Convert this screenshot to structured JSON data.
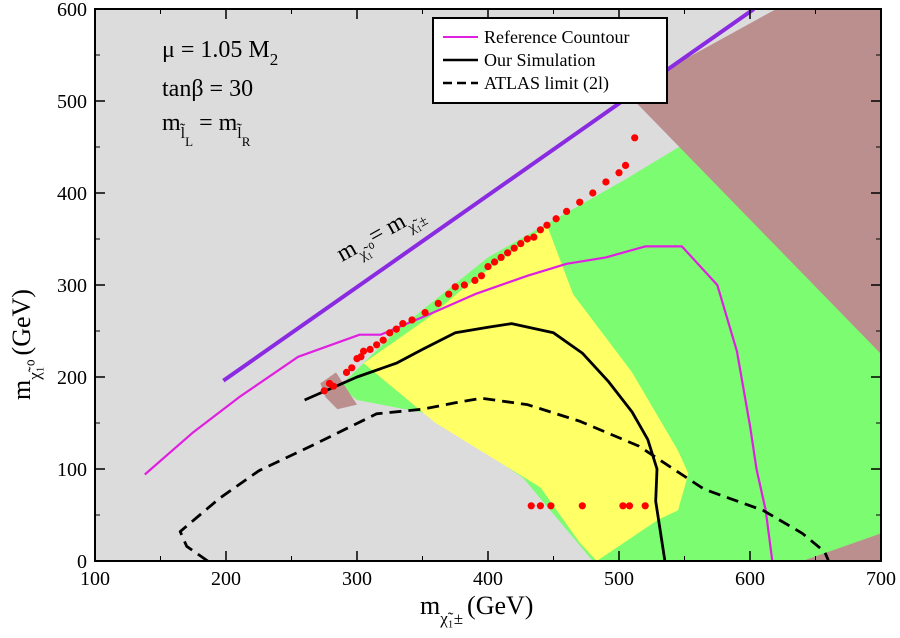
{
  "chart_data": {
    "type": "line",
    "xlabel": {
      "main": "m",
      "sub": "χ̃₁±",
      "unit": "(GeV)"
    },
    "ylabel": {
      "main": "m",
      "sub": "χ̃₁⁰",
      "unit": "(GeV)"
    },
    "xlim": [
      100,
      700
    ],
    "ylim": [
      0,
      600
    ],
    "xticks": [
      100,
      200,
      300,
      400,
      500,
      600,
      700
    ],
    "yticks": [
      0,
      100,
      200,
      300,
      400,
      500,
      600
    ],
    "annotations": {
      "mu": "μ = 1.05 M",
      "mu_sub": "2",
      "tanb": "tanβ = 30",
      "mass_rel": {
        "m": "m",
        "subL": "l̃",
        "subL2": "L",
        "eq": " = m",
        "subR": "l̃",
        "subR2": "R"
      },
      "diag_label": {
        "a": "m",
        "sub_a": "χ̃₁⁰",
        "eq": "= m",
        "sub_b": "χ̃₁±"
      }
    },
    "colors": {
      "background": "#dcdcdc",
      "excluded_brown": "#bc8f8f",
      "green_region": "#7cfc70",
      "yellow_region": "#ffff66",
      "purple_line": "#8a2be2",
      "reference": "#e020e0",
      "points": "#ff0000"
    },
    "regions": {
      "brown_top": [
        [
          505,
          510
        ],
        [
          620,
          600
        ],
        [
          700,
          600
        ],
        [
          700,
          225
        ]
      ],
      "brown_bottom": [
        [
          640,
          0
        ],
        [
          700,
          0
        ],
        [
          700,
          30
        ]
      ],
      "brown_small": [
        [
          272,
          193
        ],
        [
          284,
          205
        ],
        [
          300,
          170
        ],
        [
          285,
          165
        ],
        [
          276,
          178
        ]
      ],
      "green": [
        [
          287,
          190
        ],
        [
          330,
          250
        ],
        [
          400,
          330
        ],
        [
          505,
          415
        ],
        [
          610,
          505
        ],
        [
          700,
          593
        ],
        [
          700,
          0
        ],
        [
          598,
          0
        ],
        [
          530,
          0
        ],
        [
          480,
          0
        ],
        [
          427,
          90
        ],
        [
          355,
          160
        ],
        [
          300,
          175
        ]
      ],
      "yellow": [
        [
          305,
          215
        ],
        [
          355,
          265
        ],
        [
          380,
          295
        ],
        [
          445,
          365
        ],
        [
          465,
          290
        ],
        [
          510,
          205
        ],
        [
          545,
          120
        ],
        [
          553,
          95
        ],
        [
          545,
          55
        ],
        [
          530,
          45
        ],
        [
          483,
          0
        ],
        [
          470,
          20
        ],
        [
          440,
          80
        ],
        [
          360,
          150
        ]
      ]
    },
    "series": [
      {
        "name": "Reference Countour",
        "style": "magenta-solid",
        "points": [
          [
            138,
            94
          ],
          [
            175,
            140
          ],
          [
            210,
            178
          ],
          [
            255,
            222
          ],
          [
            302,
            246
          ],
          [
            318,
            246
          ],
          [
            355,
            268
          ],
          [
            390,
            290
          ],
          [
            430,
            310
          ],
          [
            460,
            323
          ],
          [
            490,
            330
          ],
          [
            520,
            342
          ],
          [
            548,
            342
          ],
          [
            575,
            300
          ],
          [
            590,
            228
          ],
          [
            600,
            147
          ],
          [
            605,
            100
          ],
          [
            612,
            55
          ],
          [
            617,
            0
          ]
        ]
      },
      {
        "name": "Our Simulation",
        "style": "black-solid",
        "points": [
          [
            260,
            175
          ],
          [
            300,
            200
          ],
          [
            330,
            215
          ],
          [
            350,
            230
          ],
          [
            375,
            248
          ],
          [
            400,
            254
          ],
          [
            418,
            258
          ],
          [
            450,
            248
          ],
          [
            472,
            226
          ],
          [
            492,
            195
          ],
          [
            510,
            162
          ],
          [
            522,
            132
          ],
          [
            529,
            100
          ],
          [
            528,
            65
          ],
          [
            535,
            0
          ]
        ]
      },
      {
        "name": "ATLAS limit (2l)",
        "style": "black-dashed",
        "points": [
          [
            186,
            0
          ],
          [
            170,
            16
          ],
          [
            165,
            32
          ],
          [
            180,
            50
          ],
          [
            195,
            68
          ],
          [
            225,
            98
          ],
          [
            265,
            125
          ],
          [
            315,
            160
          ],
          [
            350,
            165
          ],
          [
            375,
            172
          ],
          [
            395,
            177
          ],
          [
            430,
            170
          ],
          [
            470,
            152
          ],
          [
            515,
            125
          ],
          [
            565,
            78
          ],
          [
            610,
            55
          ],
          [
            640,
            30
          ],
          [
            657,
            10
          ],
          [
            660,
            0
          ]
        ]
      }
    ],
    "diagonal_line": [
      [
        198,
        196
      ],
      [
        603,
        600
      ]
    ],
    "scatter_points": [
      [
        275,
        185
      ],
      [
        279,
        193
      ],
      [
        282,
        190
      ],
      [
        292,
        205
      ],
      [
        296,
        210
      ],
      [
        300,
        220
      ],
      [
        303,
        222
      ],
      [
        305,
        228
      ],
      [
        310,
        230
      ],
      [
        315,
        235
      ],
      [
        320,
        240
      ],
      [
        325,
        248
      ],
      [
        330,
        252
      ],
      [
        335,
        258
      ],
      [
        342,
        262
      ],
      [
        352,
        270
      ],
      [
        362,
        280
      ],
      [
        370,
        290
      ],
      [
        375,
        298
      ],
      [
        382,
        300
      ],
      [
        390,
        305
      ],
      [
        395,
        310
      ],
      [
        400,
        320
      ],
      [
        405,
        325
      ],
      [
        410,
        330
      ],
      [
        415,
        335
      ],
      [
        420,
        340
      ],
      [
        425,
        345
      ],
      [
        430,
        350
      ],
      [
        435,
        352
      ],
      [
        440,
        360
      ],
      [
        445,
        365
      ],
      [
        452,
        372
      ],
      [
        460,
        380
      ],
      [
        470,
        390
      ],
      [
        480,
        400
      ],
      [
        490,
        412
      ],
      [
        500,
        422
      ],
      [
        505,
        430
      ],
      [
        512,
        460
      ],
      [
        433,
        60
      ],
      [
        440,
        60
      ],
      [
        448,
        60
      ],
      [
        472,
        60
      ],
      [
        503,
        60
      ],
      [
        508,
        60
      ],
      [
        520,
        60
      ]
    ],
    "legend": {
      "entries": [
        "Reference Countour",
        "Our Simulation",
        "ATLAS limit (2l)"
      ],
      "position": "top-center"
    }
  }
}
